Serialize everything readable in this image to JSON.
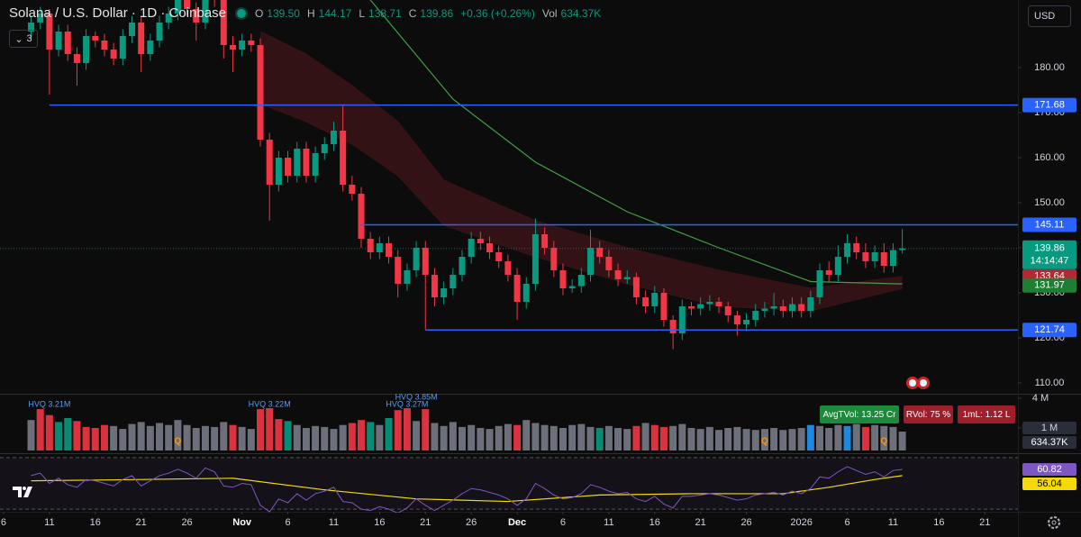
{
  "chart_data": {
    "type": "candlestick",
    "title": "Solana / U.S. Dollar · 1D · Coinbase",
    "legend": {
      "open_label": "O",
      "open": "139.50",
      "high_label": "H",
      "high": "144.17",
      "low_label": "L",
      "low": "138.71",
      "close_label": "C",
      "close": "139.86",
      "change": "+0.36 (+0.26%)",
      "volume_label": "Vol",
      "volume": "634.37K"
    },
    "countdown": "14:14:47",
    "up_color": "#089981",
    "down_color": "#f23645",
    "xlim": [
      -0.39,
      110.61
    ],
    "xticks": [
      {
        "value": 0,
        "label": "6"
      },
      {
        "value": 5,
        "label": "11"
      },
      {
        "value": 10,
        "label": "16"
      },
      {
        "value": 15,
        "label": "21"
      },
      {
        "value": 20,
        "label": "26"
      },
      {
        "value": 26,
        "label": "Nov"
      },
      {
        "value": 31,
        "label": "6"
      },
      {
        "value": 36,
        "label": "11"
      },
      {
        "value": 41,
        "label": "16"
      },
      {
        "value": 46,
        "label": "21"
      },
      {
        "value": 51,
        "label": "26"
      },
      {
        "value": 56,
        "label": "Dec"
      },
      {
        "value": 61,
        "label": "6"
      },
      {
        "value": 66,
        "label": "11"
      },
      {
        "value": 71,
        "label": "16"
      },
      {
        "value": 76,
        "label": "21"
      },
      {
        "value": 81,
        "label": "26"
      },
      {
        "value": 87,
        "label": "2026"
      },
      {
        "value": 92,
        "label": "6"
      },
      {
        "value": 97,
        "label": "11"
      },
      {
        "value": 102,
        "label": "16"
      },
      {
        "value": 107,
        "label": "21"
      }
    ],
    "ylim": [
      107.6,
      195
    ],
    "yticks": [
      {
        "value": 110,
        "label": "110.00"
      },
      {
        "value": 120,
        "label": "120.00"
      },
      {
        "value": 130,
        "label": "130.00"
      },
      {
        "value": 140,
        "label": "140.00"
      },
      {
        "value": 150,
        "label": "150.00"
      },
      {
        "value": 160,
        "label": "160.00"
      },
      {
        "value": 170,
        "label": "170.00"
      },
      {
        "value": 180,
        "label": "180.00"
      }
    ],
    "x": [
      3,
      4,
      5,
      6,
      7,
      8,
      9,
      10,
      11,
      12,
      13,
      14,
      15,
      16,
      17,
      18,
      19,
      20,
      21,
      22,
      23,
      24,
      25,
      26,
      27,
      28,
      29,
      30,
      31,
      32,
      33,
      34,
      35,
      36,
      37,
      38,
      39,
      40,
      41,
      42,
      43,
      44,
      45,
      46,
      47,
      48,
      49,
      50,
      51,
      52,
      53,
      54,
      55,
      56,
      57,
      58,
      59,
      60,
      61,
      62,
      63,
      64,
      65,
      66,
      67,
      68,
      69,
      70,
      71,
      72,
      73,
      74,
      75,
      76,
      77,
      78,
      79,
      80,
      81,
      82,
      83,
      84,
      85,
      86,
      87,
      88,
      89,
      90,
      91,
      92,
      93,
      94,
      95,
      96,
      97,
      98
    ],
    "open": [
      188,
      190,
      192,
      184,
      188,
      183,
      181,
      187,
      186,
      184,
      182,
      187,
      190,
      183,
      186,
      190,
      192,
      195,
      193,
      190,
      197,
      195,
      185,
      184,
      186,
      185,
      164,
      154,
      160,
      156,
      162,
      156,
      161,
      163,
      166,
      154,
      152,
      142,
      139,
      141,
      138,
      132,
      135,
      140,
      134,
      129,
      131,
      134,
      138,
      142,
      141,
      139,
      137,
      134,
      128,
      132,
      143,
      140,
      135,
      131,
      131.5,
      134,
      140,
      138,
      135,
      133,
      133.5,
      129,
      127,
      130,
      124,
      121,
      127,
      126.5,
      127.5,
      128,
      127,
      125,
      123,
      124,
      126,
      126.5,
      127,
      126,
      127.5,
      126,
      129,
      135,
      134,
      138,
      141,
      139,
      137,
      139,
      136,
      139.5
    ],
    "high": [
      191.5,
      193.5,
      193,
      189.5,
      189.5,
      184.5,
      188.5,
      188,
      187.5,
      185.5,
      188.5,
      191.5,
      191.5,
      187.5,
      191.5,
      193.5,
      196.5,
      196.5,
      194.5,
      198.5,
      198.5,
      196.5,
      187,
      187.5,
      187.5,
      186.5,
      165.5,
      161.5,
      161.5,
      163.5,
      163.5,
      162.5,
      164.5,
      168,
      171.5,
      156,
      153.5,
      143.5,
      142.5,
      142.5,
      139.5,
      136.5,
      141.5,
      141.5,
      135.5,
      132.5,
      135.5,
      139.5,
      143.5,
      143.5,
      142.5,
      140.5,
      138.5,
      135.5,
      133.5,
      146.5,
      144.5,
      141.5,
      136.5,
      133,
      135.5,
      144,
      141.5,
      139.5,
      136.5,
      135,
      134.5,
      130.5,
      131.5,
      131,
      125,
      128.5,
      128,
      129,
      129.5,
      129,
      128,
      126,
      125.5,
      127.5,
      128,
      130,
      128.5,
      129,
      129,
      130.5,
      136.5,
      137,
      140.5,
      143,
      142.5,
      141,
      140.5,
      141,
      141,
      144.17
    ],
    "low": [
      186.5,
      188.5,
      174,
      182.5,
      181.5,
      176,
      179.5,
      184.5,
      182.5,
      180.5,
      180.5,
      185.5,
      179,
      181.5,
      184.5,
      188.5,
      190.5,
      191.5,
      186,
      188.5,
      193.5,
      182,
      179,
      182.5,
      183.5,
      162.5,
      146,
      152.5,
      154.5,
      154.5,
      154.5,
      154.5,
      159.5,
      161.5,
      152.5,
      150.5,
      140,
      137.5,
      137.5,
      136.5,
      129,
      130.5,
      133.5,
      121.8,
      127,
      127.5,
      129.5,
      132.5,
      136.5,
      139.5,
      137.5,
      135.5,
      132.5,
      124,
      126.5,
      130.5,
      138.5,
      133.5,
      129.5,
      130,
      130,
      132.5,
      136.5,
      133.5,
      131.5,
      132,
      127.5,
      125.5,
      125.5,
      122.5,
      117.5,
      119.5,
      125,
      125,
      126,
      125.5,
      123.5,
      120.5,
      121.5,
      122.5,
      124.5,
      125,
      124.5,
      124.5,
      124.5,
      124.5,
      127.5,
      132.5,
      132.5,
      136.5,
      137.5,
      135.5,
      135.5,
      134.5,
      134.5,
      138.71
    ],
    "close": [
      190,
      192,
      184,
      188,
      183,
      181,
      187,
      186,
      184,
      182,
      187,
      190,
      183,
      186,
      190,
      192,
      195,
      193,
      190,
      197,
      195,
      185,
      184,
      186,
      185,
      164,
      154,
      160,
      156,
      162,
      156,
      161,
      163,
      166,
      154,
      152,
      142,
      139,
      141,
      138,
      132,
      135,
      140,
      134,
      129,
      131,
      134,
      138,
      142,
      141,
      139,
      137,
      134,
      128,
      132,
      143,
      140,
      135,
      131,
      131.5,
      134,
      140,
      138,
      135,
      133,
      133.5,
      129,
      127,
      130,
      124,
      121,
      127,
      126.5,
      127.5,
      128,
      127,
      125,
      123,
      124,
      126,
      126.5,
      127,
      126,
      127.5,
      126,
      129,
      135,
      134,
      138,
      141,
      139,
      137,
      139,
      136,
      139.5,
      139.86
    ],
    "hlines": [
      {
        "value": 171.68,
        "start": 5,
        "color": "#2962ff"
      },
      {
        "value": 145.11,
        "start": 38.9,
        "color": "#2962ff"
      },
      {
        "value": 121.74,
        "start": 46,
        "color": "#2962ff"
      }
    ],
    "ma": {
      "color": "#43a047",
      "x": [
        40,
        49,
        58,
        68,
        78,
        88,
        98
      ],
      "values": [
        195,
        173,
        159,
        148,
        140,
        132.5,
        131.97
      ]
    },
    "ribbon": {
      "color": "#3a1416",
      "tag_color": "#b22833",
      "x": [
        28,
        33,
        38,
        43,
        48,
        58,
        68,
        78,
        88,
        98
      ],
      "upper": [
        188,
        183,
        176,
        168,
        155,
        146,
        140,
        135,
        131,
        133.64
      ],
      "lower": [
        172,
        168,
        163,
        156,
        145,
        138,
        132,
        127,
        126,
        131
      ]
    },
    "volume": {
      "ylim": [
        -1.27,
        4.36
      ],
      "yticks": [
        {
          "value": 4,
          "label": "4 M"
        },
        {
          "value": 1,
          "label": "1 M"
        }
      ],
      "values": [
        1.8,
        2.9,
        2.3,
        1.6,
        2.0,
        1.7,
        1.1,
        1.0,
        1.3,
        1.2,
        0.9,
        1.4,
        1.6,
        1.2,
        1.5,
        1.3,
        1.8,
        1.3,
        1.0,
        1.2,
        1.1,
        1.6,
        1.3,
        1.1,
        0.9,
        2.9,
        3.0,
        1.9,
        1.7,
        1.3,
        1.0,
        1.2,
        1.1,
        0.9,
        1.3,
        1.5,
        1.8,
        1.6,
        1.3,
        2.0,
        2.8,
        3.0,
        1.7,
        2.9,
        1.5,
        1.2,
        1.6,
        1.1,
        1.3,
        1.0,
        0.9,
        1.2,
        1.4,
        1.3,
        1.8,
        1.5,
        1.3,
        1.2,
        1.0,
        1.3,
        1.4,
        1.1,
        1.0,
        1.2,
        1.0,
        0.9,
        1.2,
        1.5,
        1.3,
        1.1,
        1.2,
        1.4,
        1.0,
        0.9,
        1.1,
        0.8,
        1.0,
        1.1,
        0.9,
        0.8,
        0.9,
        1.0,
        0.8,
        0.9,
        1.0,
        1.3,
        1.2,
        1.0,
        1.3,
        1.2,
        1.4,
        1.1,
        1.3,
        1.2,
        1.1,
        0.63437
      ],
      "colors": [
        "#787b86",
        "#f23645",
        "#f23645",
        "#089981",
        "#089981",
        "#f23645",
        "#f23645",
        "#f23645",
        "#f23645",
        "#787b86",
        "#787b86",
        "#787b86",
        "#787b86",
        "#787b86",
        "#787b86",
        "#787b86",
        "#787b86",
        "#787b86",
        "#787b86",
        "#787b86",
        "#787b86",
        "#787b86",
        "#f23645",
        "#787b86",
        "#787b86",
        "#f23645",
        "#f23645",
        "#f23645",
        "#089981",
        "#787b86",
        "#787b86",
        "#787b86",
        "#787b86",
        "#787b86",
        "#787b86",
        "#f23645",
        "#f23645",
        "#089981",
        "#787b86",
        "#089981",
        "#f23645",
        "#f23645",
        "#787b86",
        "#f23645",
        "#787b86",
        "#787b86",
        "#787b86",
        "#787b86",
        "#787b86",
        "#787b86",
        "#787b86",
        "#787b86",
        "#787b86",
        "#f23645",
        "#787b86",
        "#787b86",
        "#787b86",
        "#787b86",
        "#787b86",
        "#787b86",
        "#787b86",
        "#787b86",
        "#089981",
        "#787b86",
        "#787b86",
        "#787b86",
        "#f23645",
        "#787b86",
        "#f23645",
        "#f23645",
        "#787b86",
        "#787b86",
        "#787b86",
        "#787b86",
        "#787b86",
        "#787b86",
        "#787b86",
        "#787b86",
        "#787b86",
        "#787b86",
        "#787b86",
        "#787b86",
        "#787b86",
        "#787b86",
        "#787b86",
        "#2196f3",
        "#787b86",
        "#787b86",
        "#787b86",
        "#2196f3",
        "#787b86",
        "#f23645",
        "#787b86",
        "#787b86",
        "#787b86",
        "#787b86"
      ],
      "annotations": [
        {
          "x": 5,
          "label": "HVQ 3.21M"
        },
        {
          "x": 29,
          "label": "HVQ 3.22M"
        },
        {
          "x": 45,
          "label": "HVQ 3.85M"
        },
        {
          "x": 44,
          "label": "HVQ 3.27M"
        }
      ],
      "markers": [
        {
          "x": 19,
          "label": "Q"
        },
        {
          "x": 83,
          "label": "Q"
        },
        {
          "x": 96,
          "label": "Q"
        }
      ]
    },
    "rsi": {
      "color": "#7e57c2",
      "ylim": [
        28,
        72
      ],
      "levels": [
        70,
        30
      ],
      "values": [
        56,
        58,
        50,
        54,
        49,
        47,
        53,
        52,
        50,
        48,
        53,
        56,
        48,
        52,
        56,
        58,
        61,
        58,
        54,
        62,
        59,
        48,
        47,
        50,
        49,
        33,
        28,
        38,
        35,
        42,
        37,
        42,
        44,
        47,
        36,
        35,
        30,
        29,
        32,
        30,
        27,
        31,
        38,
        33,
        29,
        33,
        37,
        42,
        46,
        45,
        43,
        41,
        38,
        33,
        38,
        50,
        46,
        41,
        38,
        39,
        42,
        49,
        47,
        44,
        42,
        43,
        38,
        36,
        40,
        34,
        31,
        40,
        40,
        41,
        42,
        41,
        39,
        37,
        38,
        41,
        42,
        43,
        41,
        44,
        42,
        46,
        55,
        54,
        59,
        63,
        60,
        57,
        59,
        55,
        60,
        60.82
      ],
      "ma": {
        "color": "#f5d90a",
        "x": [
          3,
          15,
          25,
          35,
          45,
          55,
          65,
          75,
          85,
          90,
          95,
          98
        ],
        "values": [
          52,
          53,
          54,
          45,
          38,
          36,
          41,
          42,
          42,
          47,
          53,
          56.04
        ]
      }
    }
  },
  "toolbar": {
    "indicator_count": "3",
    "currency": "USD"
  },
  "indicators": [
    "AvgTVol: 13.25 Cr",
    "RVol: 75 %",
    "1mL: 1.12 L"
  ]
}
